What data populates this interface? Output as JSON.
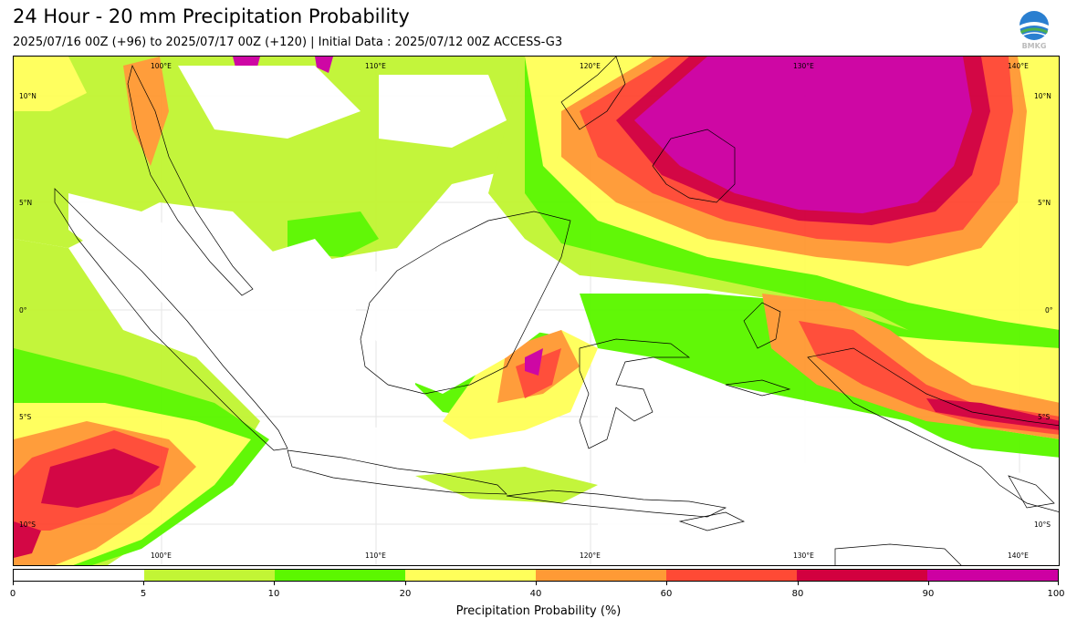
{
  "title": "24 Hour - 20 mm Precipitation Probability",
  "subtitle": "2025/07/16 00Z (+96) to 2025/07/17 00Z (+120) | Initial Data : 2025/07/12 00Z ACCESS-G3",
  "logo": {
    "icon": "bmkg-globe-logo",
    "text": "BMKG"
  },
  "map": {
    "lon_labels": [
      "100°E",
      "110°E",
      "120°E",
      "130°E",
      "140°E"
    ],
    "lat_labels": [
      "10°N",
      "5°N",
      "0°",
      "5°S",
      "10°S"
    ],
    "lon_range": [
      93.2,
      142.0
    ],
    "lat_range": [
      -12.0,
      12.0
    ]
  },
  "colorbar": {
    "label": "Precipitation Probability (%)",
    "ticks": [
      "0",
      "5",
      "10",
      "20",
      "40",
      "60",
      "80",
      "90",
      "100"
    ],
    "colors": [
      "#ffffff",
      "#c2f535",
      "#5cf700",
      "#ffff5a",
      "#ff9a35",
      "#ff4a35",
      "#d2003f",
      "#cd00a2"
    ]
  }
}
